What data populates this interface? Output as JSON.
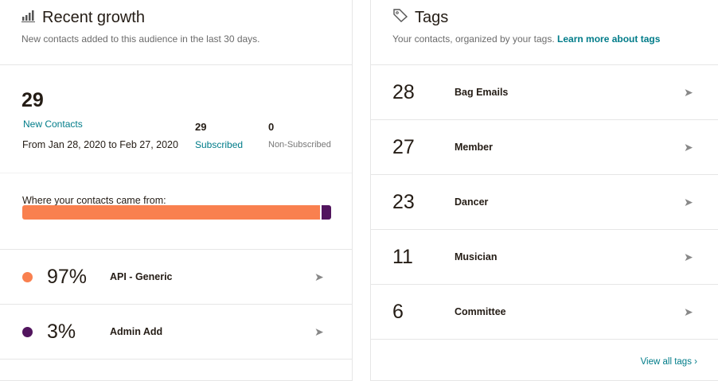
{
  "growth": {
    "title": "Recent growth",
    "subtitle": "New contacts added to this audience in the last 30 days.",
    "new_count": "29",
    "new_label": "New Contacts",
    "range": "From Jan 28, 2020 to Feb 27, 2020",
    "subscribed_count": "29",
    "subscribed_label": "Subscribed",
    "nonsub_count": "0",
    "nonsub_label": "Non-Subscribed",
    "sources_label": "Where your contacts came from:",
    "sources": [
      {
        "pct": "97%",
        "value": 97,
        "label": "API - Generic",
        "color": "#f9804f"
      },
      {
        "pct": "3%",
        "value": 3,
        "label": "Admin Add",
        "color": "#52155e"
      }
    ]
  },
  "tags": {
    "title": "Tags",
    "subtitle": "Your contacts, organized by your tags.",
    "learn_more": "Learn more about tags",
    "view_all": "View all tags",
    "items": [
      {
        "count": "28",
        "name": "Bag Emails"
      },
      {
        "count": "27",
        "name": "Member"
      },
      {
        "count": "23",
        "name": "Dancer"
      },
      {
        "count": "11",
        "name": "Musician"
      },
      {
        "count": "6",
        "name": "Committee"
      }
    ]
  }
}
